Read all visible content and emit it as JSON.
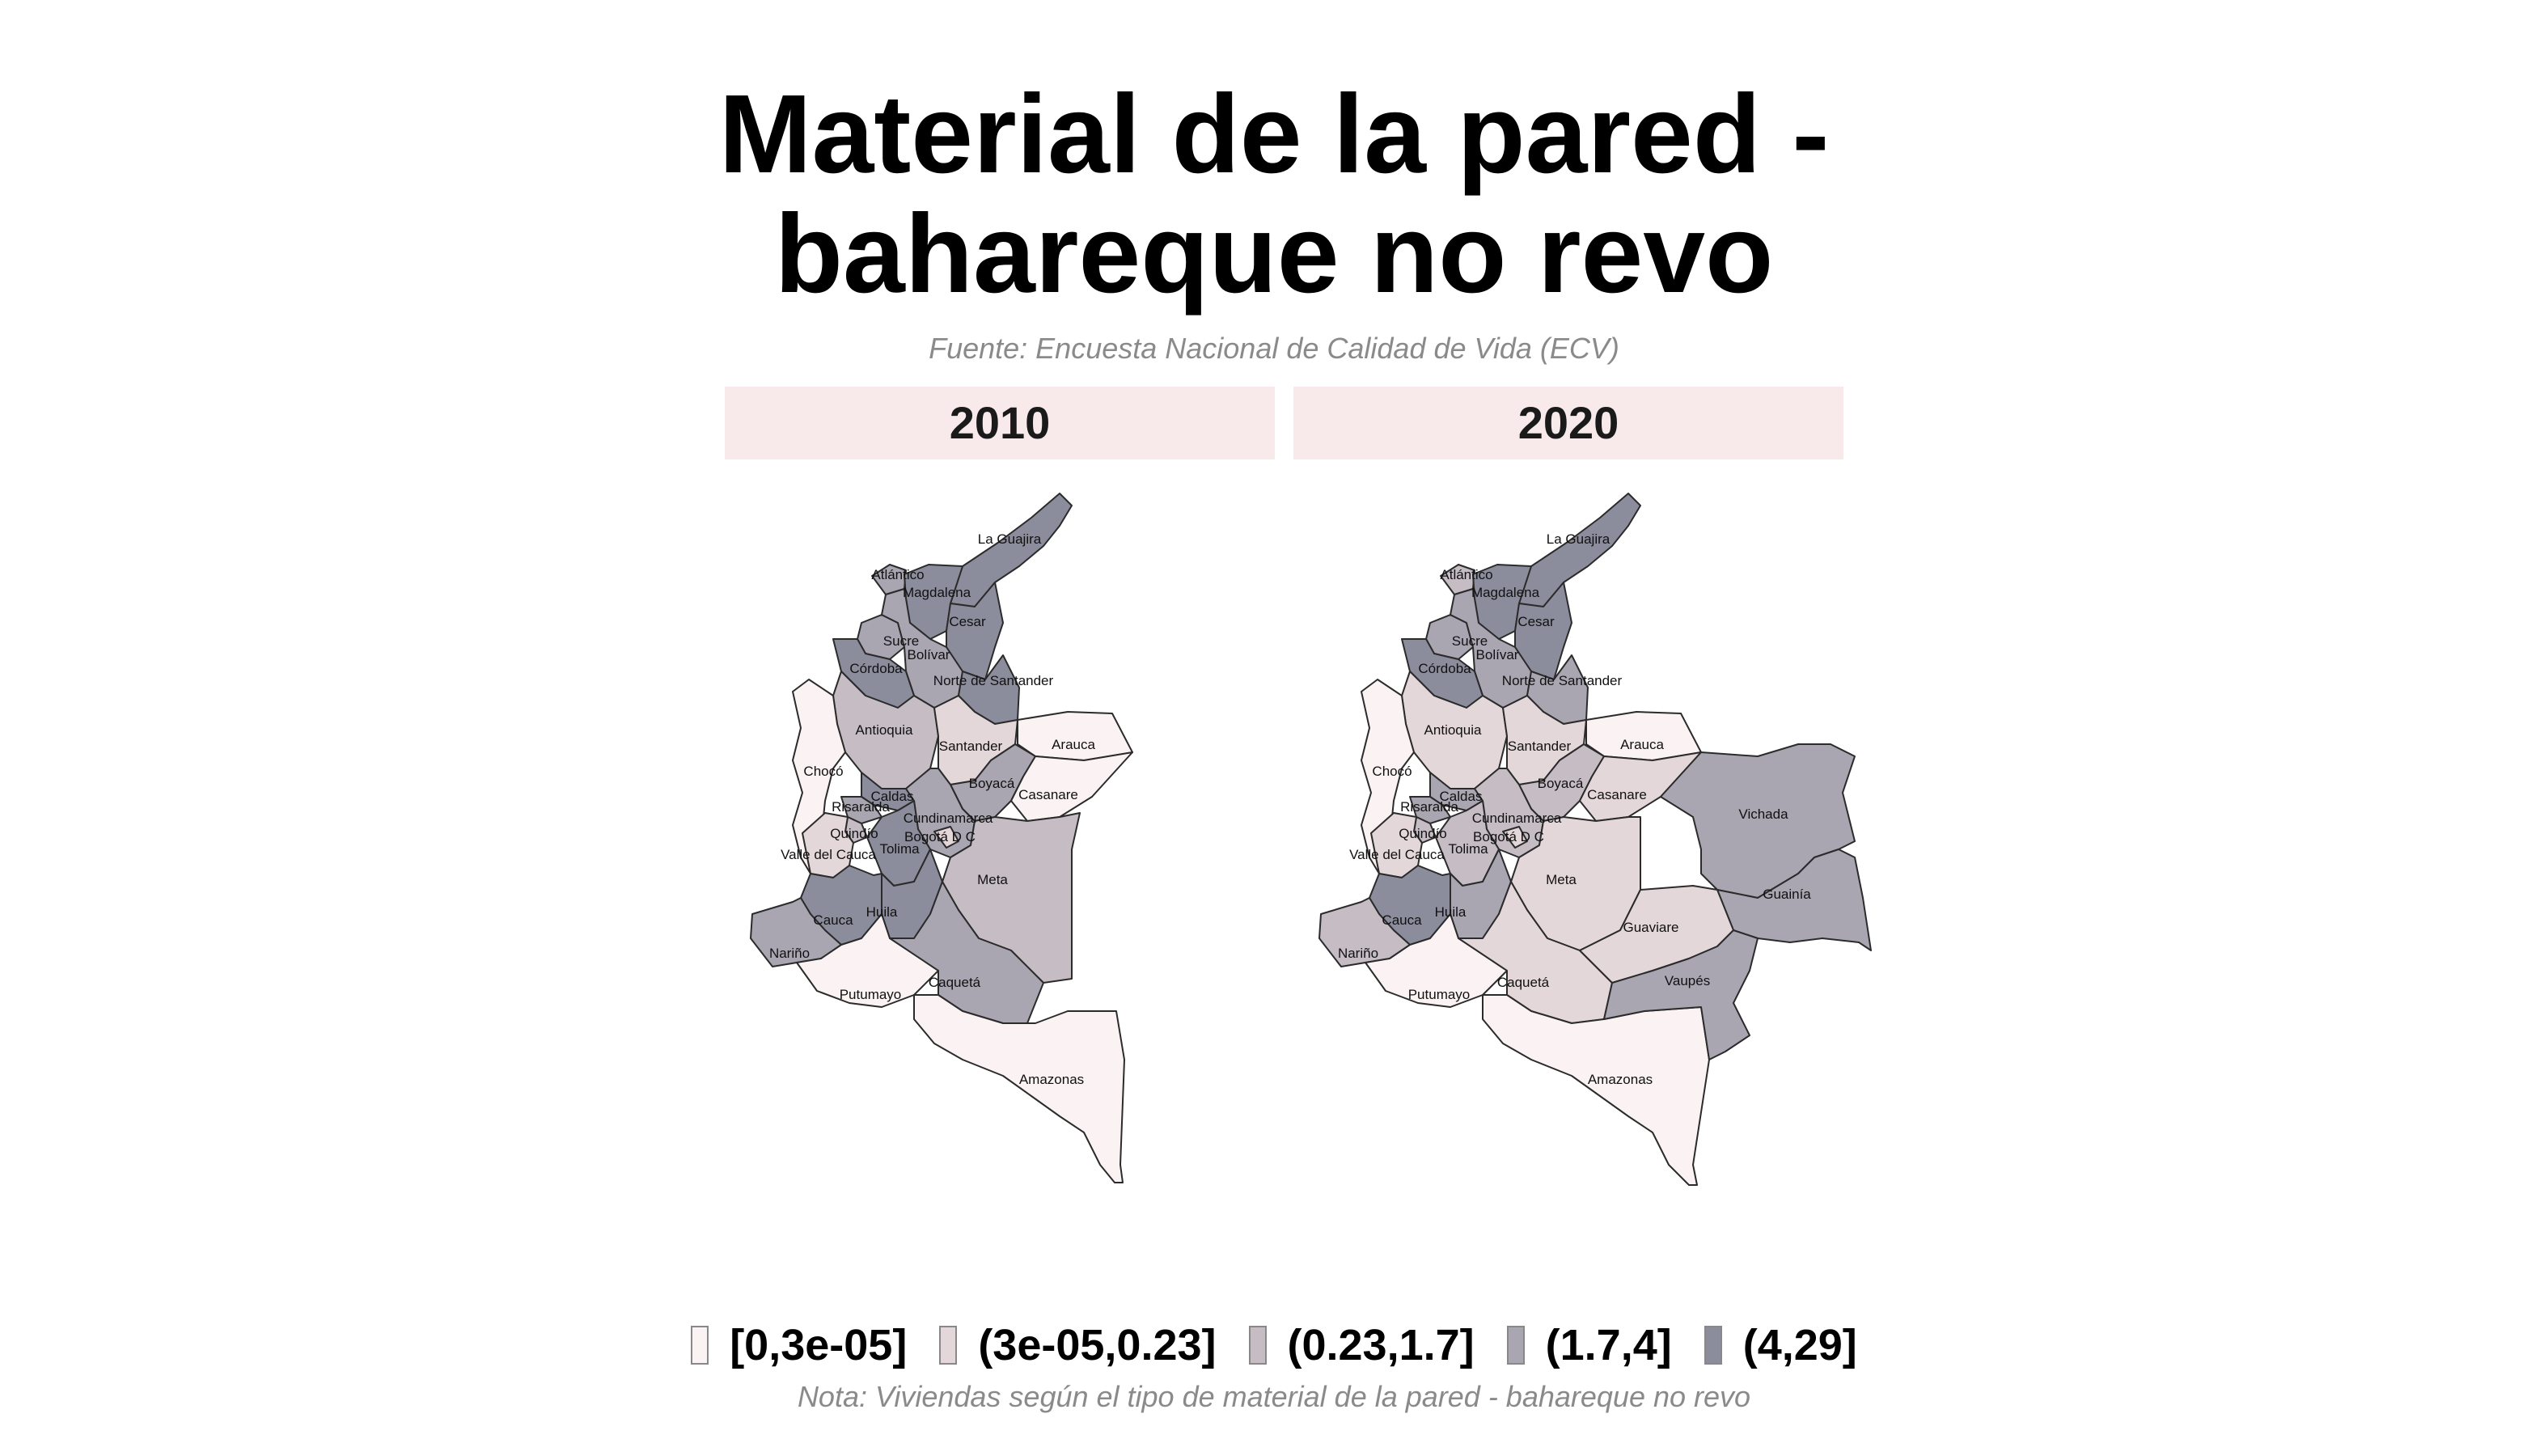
{
  "title_line1": "Material de la pared -",
  "title_line2": "bahareque no revo",
  "subtitle": "Fuente: Encuesta Nacional de Calidad de Vida (ECV)",
  "note": "Nota: Viviendas según el tipo de material de la pared - bahareque no revo",
  "legend": [
    {
      "label": "[0,3e-05]",
      "color": "#fbf3f3"
    },
    {
      "label": "(3e-05,0.23]",
      "color": "#e4d7da"
    },
    {
      "label": "(0.23,1.7]",
      "color": "#c5bcc4"
    },
    {
      "label": "(1.7,4]",
      "color": "#a9a6b2"
    },
    {
      "label": "(4,29]",
      "color": "#8b8d9c"
    }
  ],
  "panels": [
    {
      "year": "2010",
      "classes": {
        "La Guajira": 4,
        "Atlántico": 3,
        "Magdalena": 4,
        "Cesar": 4,
        "Sucre": 3,
        "Bolívar": 3,
        "Córdoba": 4,
        "Norte de Santander": 4,
        "Antioquia": 2,
        "Santander": 1,
        "Arauca": 0,
        "Chocó": 0,
        "Boyacá": 3,
        "Casanare": 0,
        "Caldas": 4,
        "Risaralda": 3,
        "Cundinamarca": 3,
        "Quindío": 2,
        "Bogotá D C": 1,
        "Valle del Cauca": 1,
        "Tolima": 4,
        "Meta": 2,
        "Cauca": 4,
        "Huila": 4,
        "Nariño": 3,
        "Putumayo": 0,
        "Caquetá": 3,
        "Amazonas": 0
      }
    },
    {
      "year": "2020",
      "classes": {
        "La Guajira": 4,
        "Atlántico": 2,
        "Magdalena": 4,
        "Cesar": 4,
        "Sucre": 3,
        "Bolívar": 3,
        "Córdoba": 4,
        "Norte de Santander": 3,
        "Antioquia": 1,
        "Santander": 1,
        "Arauca": 0,
        "Chocó": 0,
        "Boyacá": 2,
        "Casanare": 1,
        "Caldas": 3,
        "Risaralda": 3,
        "Cundinamarca": 2,
        "Quindío": 2,
        "Bogotá D C": 1,
        "Valle del Cauca": 1,
        "Tolima": 2,
        "Meta": 1,
        "Cauca": 4,
        "Huila": 3,
        "Nariño": 2,
        "Putumayo": 0,
        "Caquetá": 1,
        "Amazonas": 0,
        "Vichada": 3,
        "Guainía": 3,
        "Guaviare": 1,
        "Vaupés": 3
      }
    }
  ]
}
